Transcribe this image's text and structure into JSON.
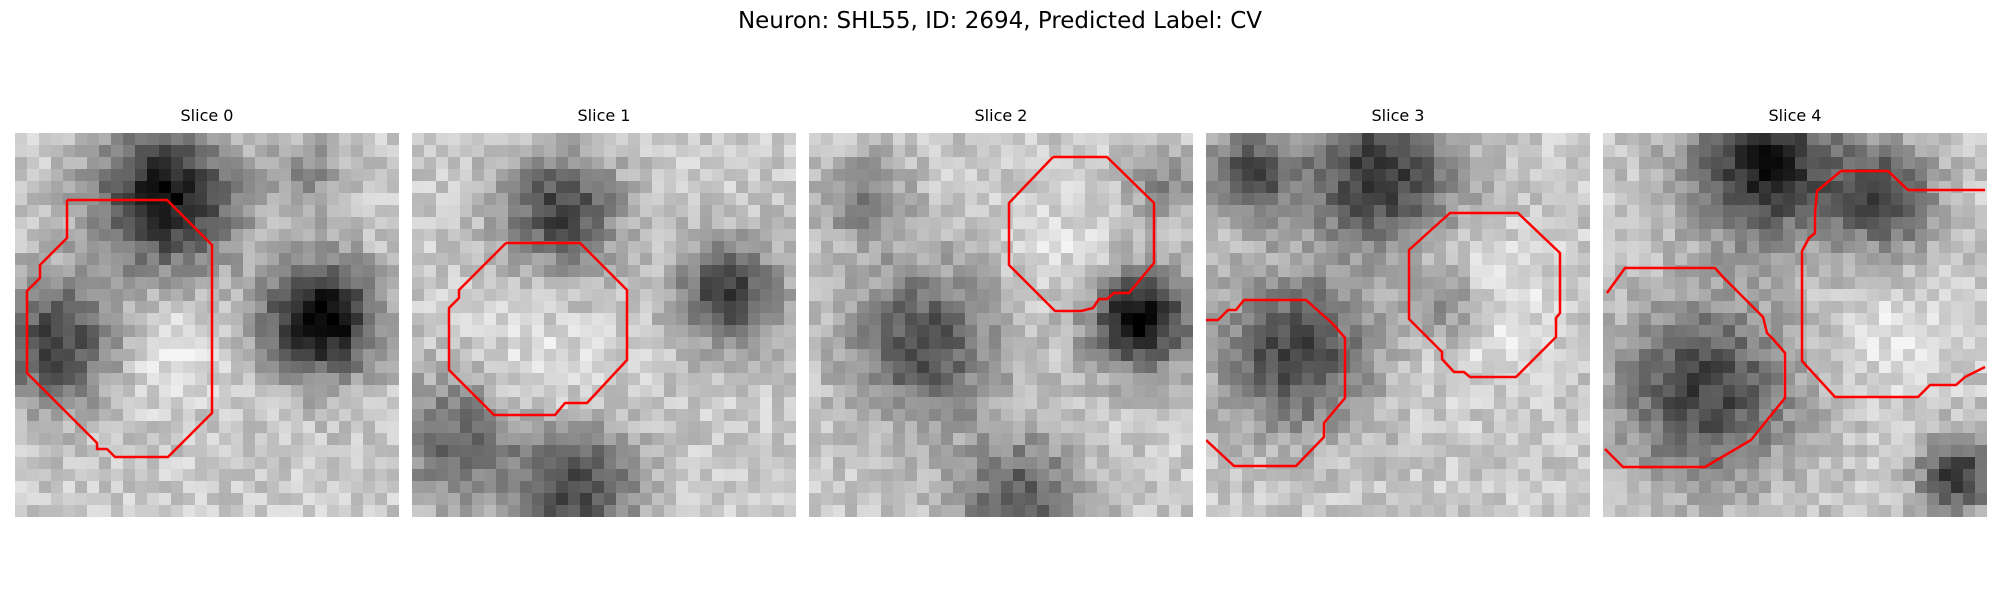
{
  "figure": {
    "title": "Neuron: SHL55, ID: 2694, Predicted Label: CV",
    "contour_color": "#ff0000",
    "colormap": "gray",
    "slices": [
      {
        "title": "Slice 0"
      },
      {
        "title": "Slice 1"
      },
      {
        "title": "Slice 2"
      },
      {
        "title": "Slice 3"
      },
      {
        "title": "Slice 4"
      }
    ]
  }
}
